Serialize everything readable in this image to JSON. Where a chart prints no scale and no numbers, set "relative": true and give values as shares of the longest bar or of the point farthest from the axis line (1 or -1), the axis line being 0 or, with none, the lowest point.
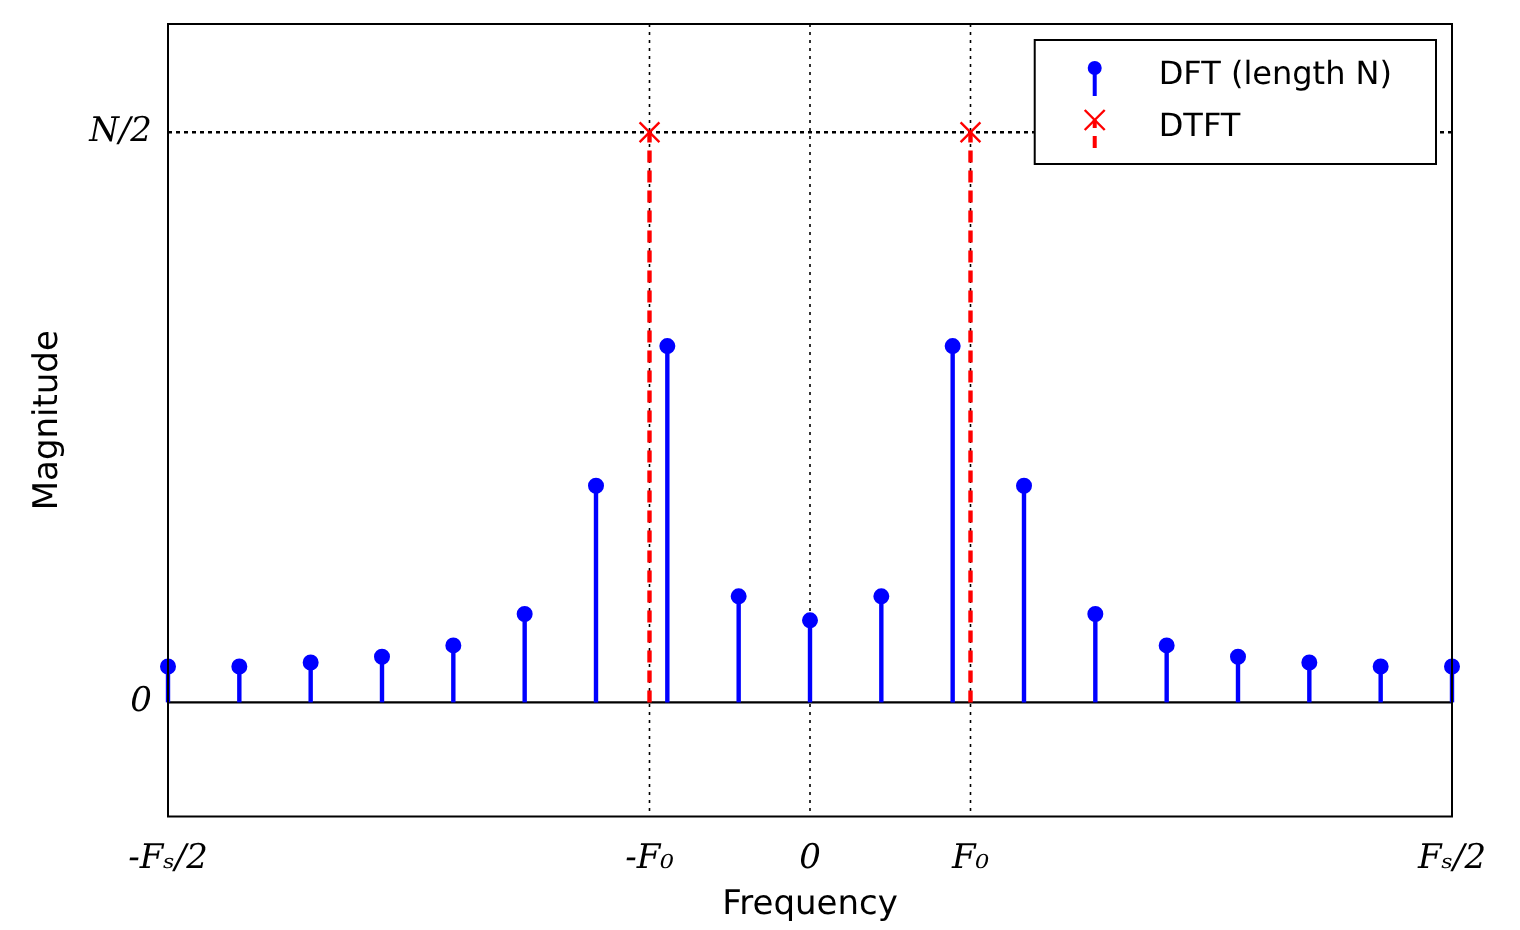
{
  "chart_data": {
    "type": "lollipop",
    "xlabel": "Frequency",
    "ylabel": "Magnitude",
    "relative": true,
    "categories": [
      "-Fₛ/2",
      null,
      null,
      null,
      null,
      null,
      null,
      null,
      null,
      null,
      null,
      null,
      null,
      null,
      null,
      null,
      null,
      null,
      null,
      null,
      null,
      null,
      null,
      null,
      null,
      null,
      null,
      "-F₀",
      null,
      null,
      null,
      null,
      null,
      null,
      null,
      null,
      "0",
      null,
      null,
      null,
      null,
      null,
      null,
      null,
      null,
      "F₀",
      null,
      null,
      null,
      null,
      null,
      null,
      null,
      null,
      null,
      null,
      null,
      null,
      null,
      null,
      null,
      null,
      null,
      null,
      null,
      null,
      null,
      null,
      null,
      null,
      null,
      null,
      "Fₛ/2"
    ],
    "grid": "x",
    "legend": "top right",
    "ref_lines": [
      {
        "axis": "y",
        "value": 0,
        "label": "0",
        "color": "#000000",
        "line_style": "solid"
      },
      {
        "axis": "y",
        "value": 1,
        "label": "N/2",
        "color": "#000000",
        "line_style": "dotted"
      }
    ],
    "series": [
      {
        "name": "DFT (length N)",
        "color": "#0000ff",
        "marker": "circle",
        "line_style": "solid",
        "values": [
          0.063,
          null,
          null,
          null,
          0.063,
          null,
          null,
          null,
          0.07,
          null,
          null,
          null,
          0.08,
          null,
          null,
          null,
          0.1,
          null,
          null,
          null,
          0.155,
          null,
          null,
          null,
          0.38,
          null,
          null,
          null,
          0.625,
          null,
          null,
          null,
          0.186,
          null,
          null,
          null,
          0.144,
          null,
          null,
          null,
          0.186,
          null,
          null,
          null,
          0.625,
          null,
          null,
          null,
          0.38,
          null,
          null,
          null,
          0.155,
          null,
          null,
          null,
          0.1,
          null,
          null,
          null,
          0.08,
          null,
          null,
          null,
          0.07,
          null,
          null,
          null,
          0.063,
          null,
          null,
          null,
          0.063
        ]
      },
      {
        "name": "DTFT",
        "color": "#ff0000",
        "marker": "cross",
        "line_style": "dashed",
        "values": [
          null,
          null,
          null,
          null,
          null,
          null,
          null,
          null,
          null,
          null,
          null,
          null,
          null,
          null,
          null,
          null,
          null,
          null,
          null,
          null,
          null,
          null,
          null,
          null,
          null,
          null,
          null,
          1,
          null,
          null,
          null,
          null,
          null,
          null,
          null,
          null,
          null,
          null,
          null,
          null,
          null,
          null,
          null,
          null,
          null,
          1,
          null,
          null,
          null,
          null,
          null,
          null,
          null,
          null,
          null,
          null,
          null,
          null,
          null,
          null,
          null,
          null,
          null,
          null,
          null,
          null,
          null,
          null,
          null,
          null,
          null,
          null,
          null
        ]
      }
    ]
  }
}
